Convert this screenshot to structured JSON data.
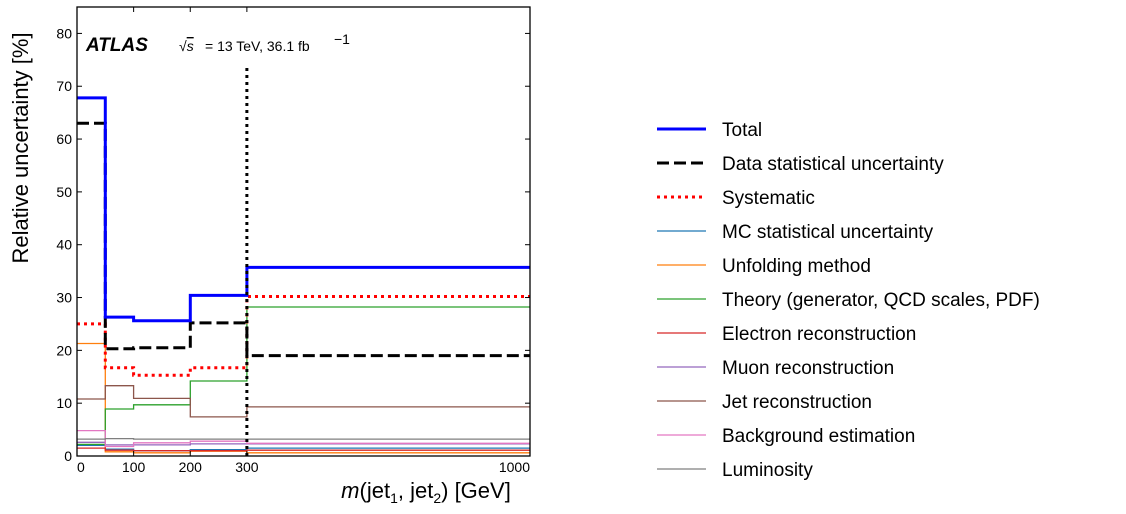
{
  "chart_data": {
    "type": "line",
    "step": true,
    "atlas_label": "ATLAS",
    "energy_label": "= 13 TeV, 36.1 fb",
    "energy_sup": "−1",
    "ylabel": "Relative uncertainty [%]",
    "xlabel_parts": [
      "m",
      "(jet",
      "1",
      ", jet",
      "2",
      ") [GeV]"
    ],
    "ylim": [
      0,
      85
    ],
    "yticks": [
      "0",
      "10",
      "20",
      "30",
      "40",
      "50",
      "60",
      "70",
      "80"
    ],
    "ytick_values": [
      0,
      10,
      20,
      30,
      40,
      50,
      60,
      70,
      80
    ],
    "xticks": [
      "0",
      "100",
      "200",
      "300",
      "1000"
    ],
    "bin_edges": [
      0,
      50,
      100,
      200,
      300,
      1000
    ],
    "bin_display_edges": [
      0,
      0.5,
      1,
      2,
      3,
      8
    ],
    "legend_position": "right",
    "boundary_marker_at": 300,
    "boundary_marker_top": 74,
    "series": [
      {
        "name": "Total",
        "color": "#0000ff",
        "style": "solid",
        "width": 3,
        "values": [
          67.8,
          26.3,
          25.6,
          30.4,
          35.7
        ]
      },
      {
        "name": "Data statistical uncertainty",
        "color": "#000000",
        "style": "dashed",
        "width": 3,
        "values": [
          63.0,
          20.3,
          20.5,
          25.2,
          19.0
        ]
      },
      {
        "name": "Systematic",
        "color": "#ff0000",
        "style": "dotted",
        "width": 3,
        "values": [
          25.0,
          16.7,
          15.3,
          16.7,
          30.2
        ]
      },
      {
        "name": "MC statistical uncertainty",
        "color": "#1f77b4",
        "style": "solid",
        "width": 1.3,
        "values": [
          2.0,
          1.3,
          1.0,
          1.2,
          1.5
        ]
      },
      {
        "name": "Unfolding method",
        "color": "#ff7f0e",
        "style": "solid",
        "width": 1.3,
        "values": [
          21.3,
          0.8,
          0.6,
          0.9,
          0.6
        ]
      },
      {
        "name": "Theory (generator, QCD scales, PDF)",
        "color": "#2ca02c",
        "style": "solid",
        "width": 1.3,
        "values": [
          2.2,
          8.9,
          9.7,
          14.2,
          28.2
        ]
      },
      {
        "name": "Electron reconstruction",
        "color": "#d62728",
        "style": "solid",
        "width": 1.3,
        "values": [
          1.5,
          1.1,
          1.0,
          1.0,
          1.1
        ]
      },
      {
        "name": "Muon reconstruction",
        "color": "#9467bd",
        "style": "solid",
        "width": 1.3,
        "values": [
          2.6,
          2.1,
          2.1,
          2.3,
          2.3
        ]
      },
      {
        "name": "Jet reconstruction",
        "color": "#8c564b",
        "style": "solid",
        "width": 1.3,
        "values": [
          10.8,
          13.3,
          10.9,
          7.4,
          9.3
        ]
      },
      {
        "name": "Background estimation",
        "color": "#e377c2",
        "style": "solid",
        "width": 1.3,
        "values": [
          4.8,
          1.8,
          2.5,
          2.8,
          2.4
        ]
      },
      {
        "name": "Luminosity",
        "color": "#7f7f7f",
        "style": "solid",
        "width": 1.3,
        "values": [
          3.2,
          3.3,
          3.2,
          3.2,
          3.2
        ]
      }
    ]
  }
}
